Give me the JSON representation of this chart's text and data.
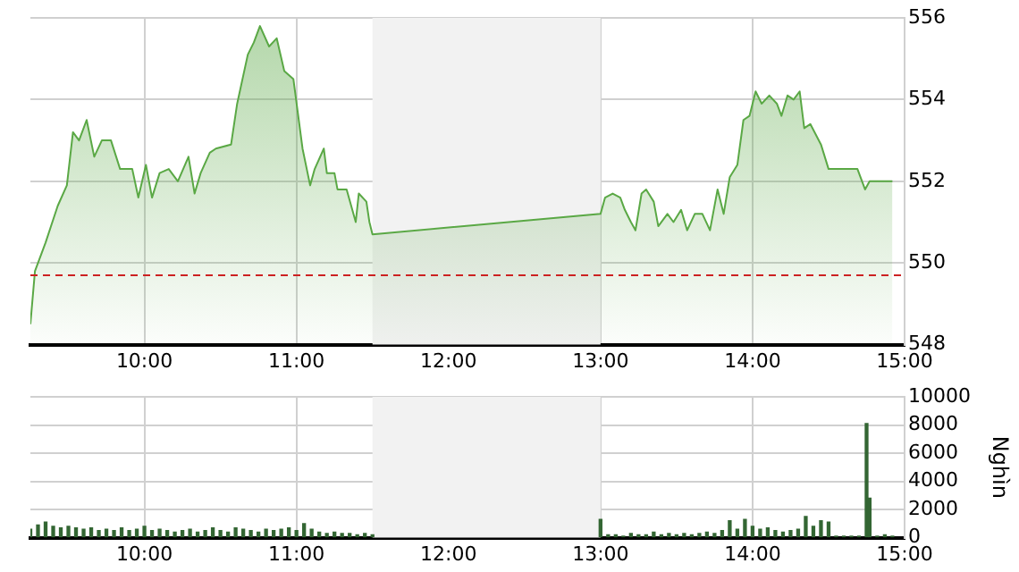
{
  "chart_data": [
    {
      "type": "area",
      "xlim": [
        9.25,
        15
      ],
      "xticks": [
        {
          "value": 10,
          "label": "10:00"
        },
        {
          "value": 11,
          "label": "11:00"
        },
        {
          "value": 12,
          "label": "12:00"
        },
        {
          "value": 13,
          "label": "13:00"
        },
        {
          "value": 14,
          "label": "14:00"
        },
        {
          "value": 15,
          "label": "15:00"
        }
      ],
      "ylim": [
        548,
        556
      ],
      "yticks": [
        548,
        550,
        552,
        554,
        556
      ],
      "grid": true,
      "series": [
        {
          "color": "#5aa845",
          "x": [
            9.25,
            9.28,
            9.35,
            9.43,
            9.49,
            9.53,
            9.57,
            9.62,
            9.67,
            9.72,
            9.78,
            9.84,
            9.92,
            9.96,
            10.01,
            10.05,
            10.1,
            10.16,
            10.22,
            10.29,
            10.33,
            10.37,
            10.43,
            10.47,
            10.57,
            10.61,
            10.68,
            10.72,
            10.76,
            10.82,
            10.87,
            10.92,
            10.98,
            11.04,
            11.09,
            11.12,
            11.18,
            11.2,
            11.25,
            11.27,
            11.33,
            11.39,
            11.41,
            11.46,
            11.48,
            11.5,
            13.0,
            13.03,
            13.08,
            13.13,
            13.16,
            13.2,
            13.23,
            13.27,
            13.3,
            13.35,
            13.38,
            13.44,
            13.48,
            13.53,
            13.57,
            13.62,
            13.67,
            13.72,
            13.77,
            13.81,
            13.85,
            13.9,
            13.94,
            13.98,
            14.02,
            14.06,
            14.11,
            14.16,
            14.19,
            14.23,
            14.27,
            14.31,
            14.34,
            14.38,
            14.45,
            14.5,
            14.69,
            14.74,
            14.77,
            14.92
          ],
          "values": [
            548.5,
            549.8,
            550.5,
            551.4,
            551.9,
            553.2,
            553.0,
            553.5,
            552.6,
            553.0,
            553.0,
            552.3,
            552.3,
            551.6,
            552.4,
            551.6,
            552.2,
            552.3,
            552.0,
            552.6,
            551.7,
            552.2,
            552.7,
            552.8,
            552.9,
            553.9,
            555.1,
            555.4,
            555.8,
            555.3,
            555.5,
            554.7,
            554.5,
            552.8,
            551.9,
            552.3,
            552.8,
            552.2,
            552.2,
            551.8,
            551.8,
            551.0,
            551.7,
            551.5,
            551.0,
            550.7,
            551.2,
            551.6,
            551.7,
            551.6,
            551.3,
            551.0,
            550.8,
            551.7,
            551.8,
            551.5,
            550.9,
            551.2,
            551.0,
            551.3,
            550.8,
            551.2,
            551.2,
            550.8,
            551.8,
            551.2,
            552.1,
            552.4,
            553.5,
            553.6,
            554.2,
            553.9,
            554.1,
            553.9,
            553.6,
            554.1,
            554.0,
            554.2,
            553.3,
            553.4,
            552.9,
            552.3,
            552.3,
            551.8,
            552.0,
            552.0
          ]
        }
      ],
      "ref_lines": [
        {
          "axis": "y",
          "value": 549.7,
          "color": "#cc2222",
          "line_style": "dashed"
        }
      ],
      "bands": [
        {
          "axis": "x",
          "from": 11.5,
          "to": 13,
          "color": "#f2f2f2"
        }
      ]
    },
    {
      "type": "bar",
      "xlim": [
        9.25,
        15
      ],
      "xticks": [
        {
          "value": 10,
          "label": "10:00"
        },
        {
          "value": 11,
          "label": "11:00"
        },
        {
          "value": 12,
          "label": "12:00"
        },
        {
          "value": 13,
          "label": "13:00"
        },
        {
          "value": 14,
          "label": "14:00"
        },
        {
          "value": 15,
          "label": "15:00"
        }
      ],
      "ylim": [
        0,
        10000
      ],
      "yticks": [
        0,
        2000,
        4000,
        6000,
        8000,
        10000
      ],
      "grid": true,
      "ylabel": "Nghìn",
      "series": [
        {
          "color": "#336633",
          "x": [
            9.25,
            9.3,
            9.35,
            9.4,
            9.45,
            9.5,
            9.55,
            9.6,
            9.65,
            9.7,
            9.75,
            9.8,
            9.85,
            9.9,
            9.95,
            10.0,
            10.05,
            10.1,
            10.15,
            10.2,
            10.25,
            10.3,
            10.35,
            10.4,
            10.45,
            10.5,
            10.55,
            10.6,
            10.65,
            10.7,
            10.75,
            10.8,
            10.85,
            10.9,
            10.95,
            11.0,
            11.05,
            11.1,
            11.15,
            11.2,
            11.25,
            11.3,
            11.35,
            11.4,
            11.45,
            11.5,
            13.0,
            13.05,
            13.1,
            13.15,
            13.2,
            13.25,
            13.3,
            13.35,
            13.4,
            13.45,
            13.5,
            13.55,
            13.6,
            13.65,
            13.7,
            13.75,
            13.8,
            13.85,
            13.9,
            13.95,
            14.0,
            14.05,
            14.1,
            14.15,
            14.2,
            14.25,
            14.3,
            14.35,
            14.4,
            14.45,
            14.5,
            14.55,
            14.6,
            14.65,
            14.7,
            14.75,
            14.77,
            14.82,
            14.87,
            14.92
          ],
          "values": [
            600,
            900,
            1100,
            800,
            700,
            800,
            700,
            600,
            700,
            500,
            600,
            500,
            700,
            500,
            600,
            800,
            500,
            600,
            500,
            400,
            500,
            600,
            400,
            500,
            700,
            500,
            400,
            700,
            600,
            500,
            400,
            600,
            500,
            600,
            700,
            500,
            1000,
            600,
            400,
            300,
            400,
            300,
            300,
            200,
            300,
            200,
            1300,
            200,
            200,
            100,
            300,
            200,
            200,
            400,
            200,
            300,
            200,
            300,
            200,
            300,
            400,
            300,
            500,
            1200,
            600,
            1300,
            800,
            600,
            700,
            500,
            400,
            500,
            600,
            1500,
            800,
            1200,
            1100,
            100,
            100,
            100,
            100,
            8100,
            2800,
            100,
            200,
            100
          ]
        }
      ],
      "bands": [
        {
          "axis": "x",
          "from": 11.5,
          "to": 13,
          "color": "#f2f2f2"
        }
      ]
    }
  ]
}
